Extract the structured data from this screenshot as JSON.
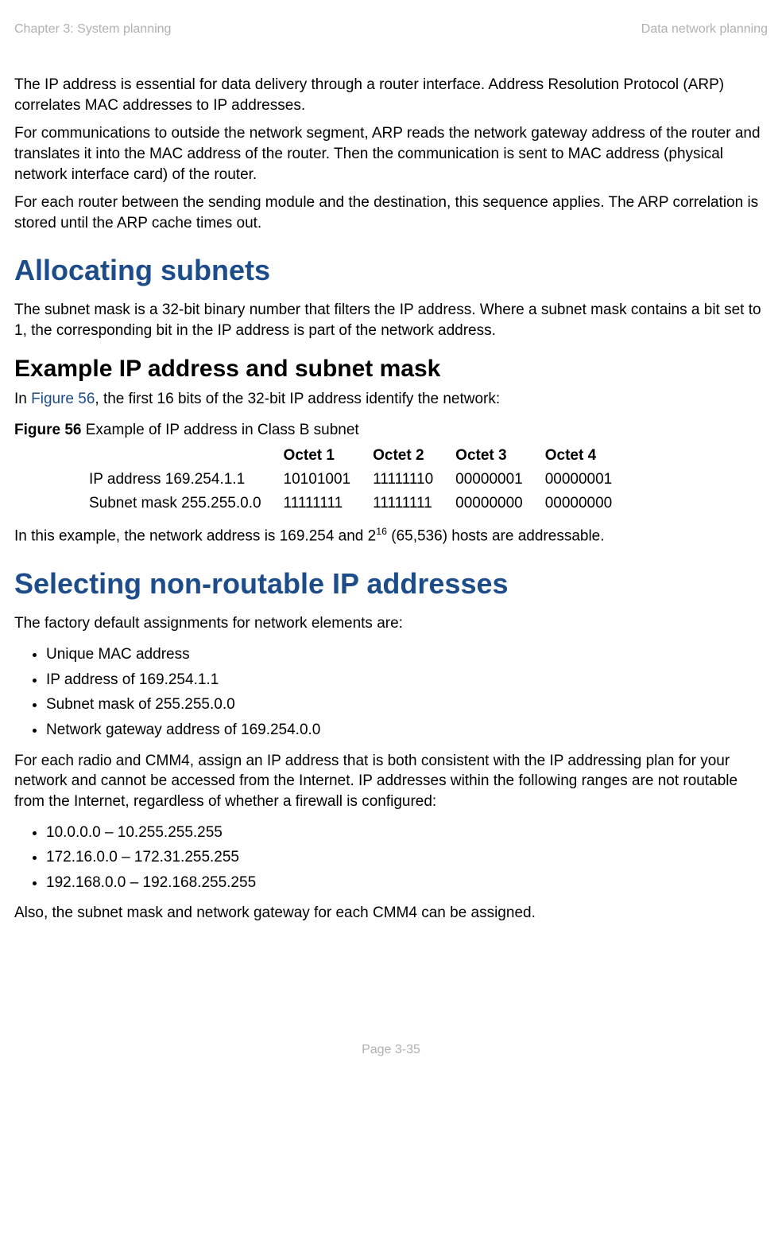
{
  "header": {
    "left": "Chapter 3:  System planning",
    "right": "Data network planning"
  },
  "paragraphs": {
    "p1": "The IP address is essential for data delivery through a router interface. Address Resolution Protocol (ARP) correlates MAC addresses to IP addresses.",
    "p2": "For communications to outside the network segment, ARP reads the network gateway address of the router and translates it into the MAC address of the router. Then the communication is sent to MAC address (physical network interface card) of the router.",
    "p3": "For each router between the sending module and the destination, this sequence applies. The ARP correlation is stored until the ARP cache times out.",
    "h1a": "Allocating subnets",
    "p4": "The subnet mask is a 32-bit binary number that filters the IP address. Where a subnet mask contains a bit set to 1, the corresponding bit in the IP address is part of the network address.",
    "h2a": "Example IP address and subnet mask",
    "p5_pre": "In ",
    "p5_link": "Figure 56",
    "p5_post": ", the first 16 bits of the 32-bit IP address identify the network:",
    "fig_caption_bold": "Figure 56",
    "fig_caption_rest": " Example of IP address in Class B subnet",
    "p6_pre": "In this example, the network address is 169.254 and 2",
    "p6_sup": "16",
    "p6_post": " (65,536) hosts are addressable.",
    "h1b": "Selecting non-routable IP addresses",
    "p7": "The factory default assignments for network elements are:",
    "p8": "For each radio and CMM4, assign an IP address that is both consistent with the IP addressing plan for your network and cannot be accessed from the Internet. IP addresses within the following ranges are not routable from the Internet, regardless of whether a firewall is configured:",
    "p9": "Also, the subnet mask and network gateway for each CMM4 can be assigned."
  },
  "figure_table": {
    "columns": [
      "",
      "Octet 1",
      "Octet 2",
      "Octet 3",
      "Octet 4"
    ],
    "rows": [
      [
        "IP address 169.254.1.1",
        "10101001",
        "11111110",
        "00000001",
        "00000001"
      ],
      [
        "Subnet mask 255.255.0.0",
        "11111111",
        "11111111",
        "00000000",
        "00000000"
      ]
    ]
  },
  "list_defaults": [
    "Unique MAC address",
    "IP address of 169.254.1.1",
    "Subnet mask of 255.255.0.0",
    "Network gateway address of 169.254.0.0"
  ],
  "list_ranges": [
    "10.0.0.0 – 10.255.255.255",
    "172.16.0.0 – 172.31.255.255",
    "192.168.0.0 – 192.168.255.255"
  ],
  "footer": "Page 3-35"
}
